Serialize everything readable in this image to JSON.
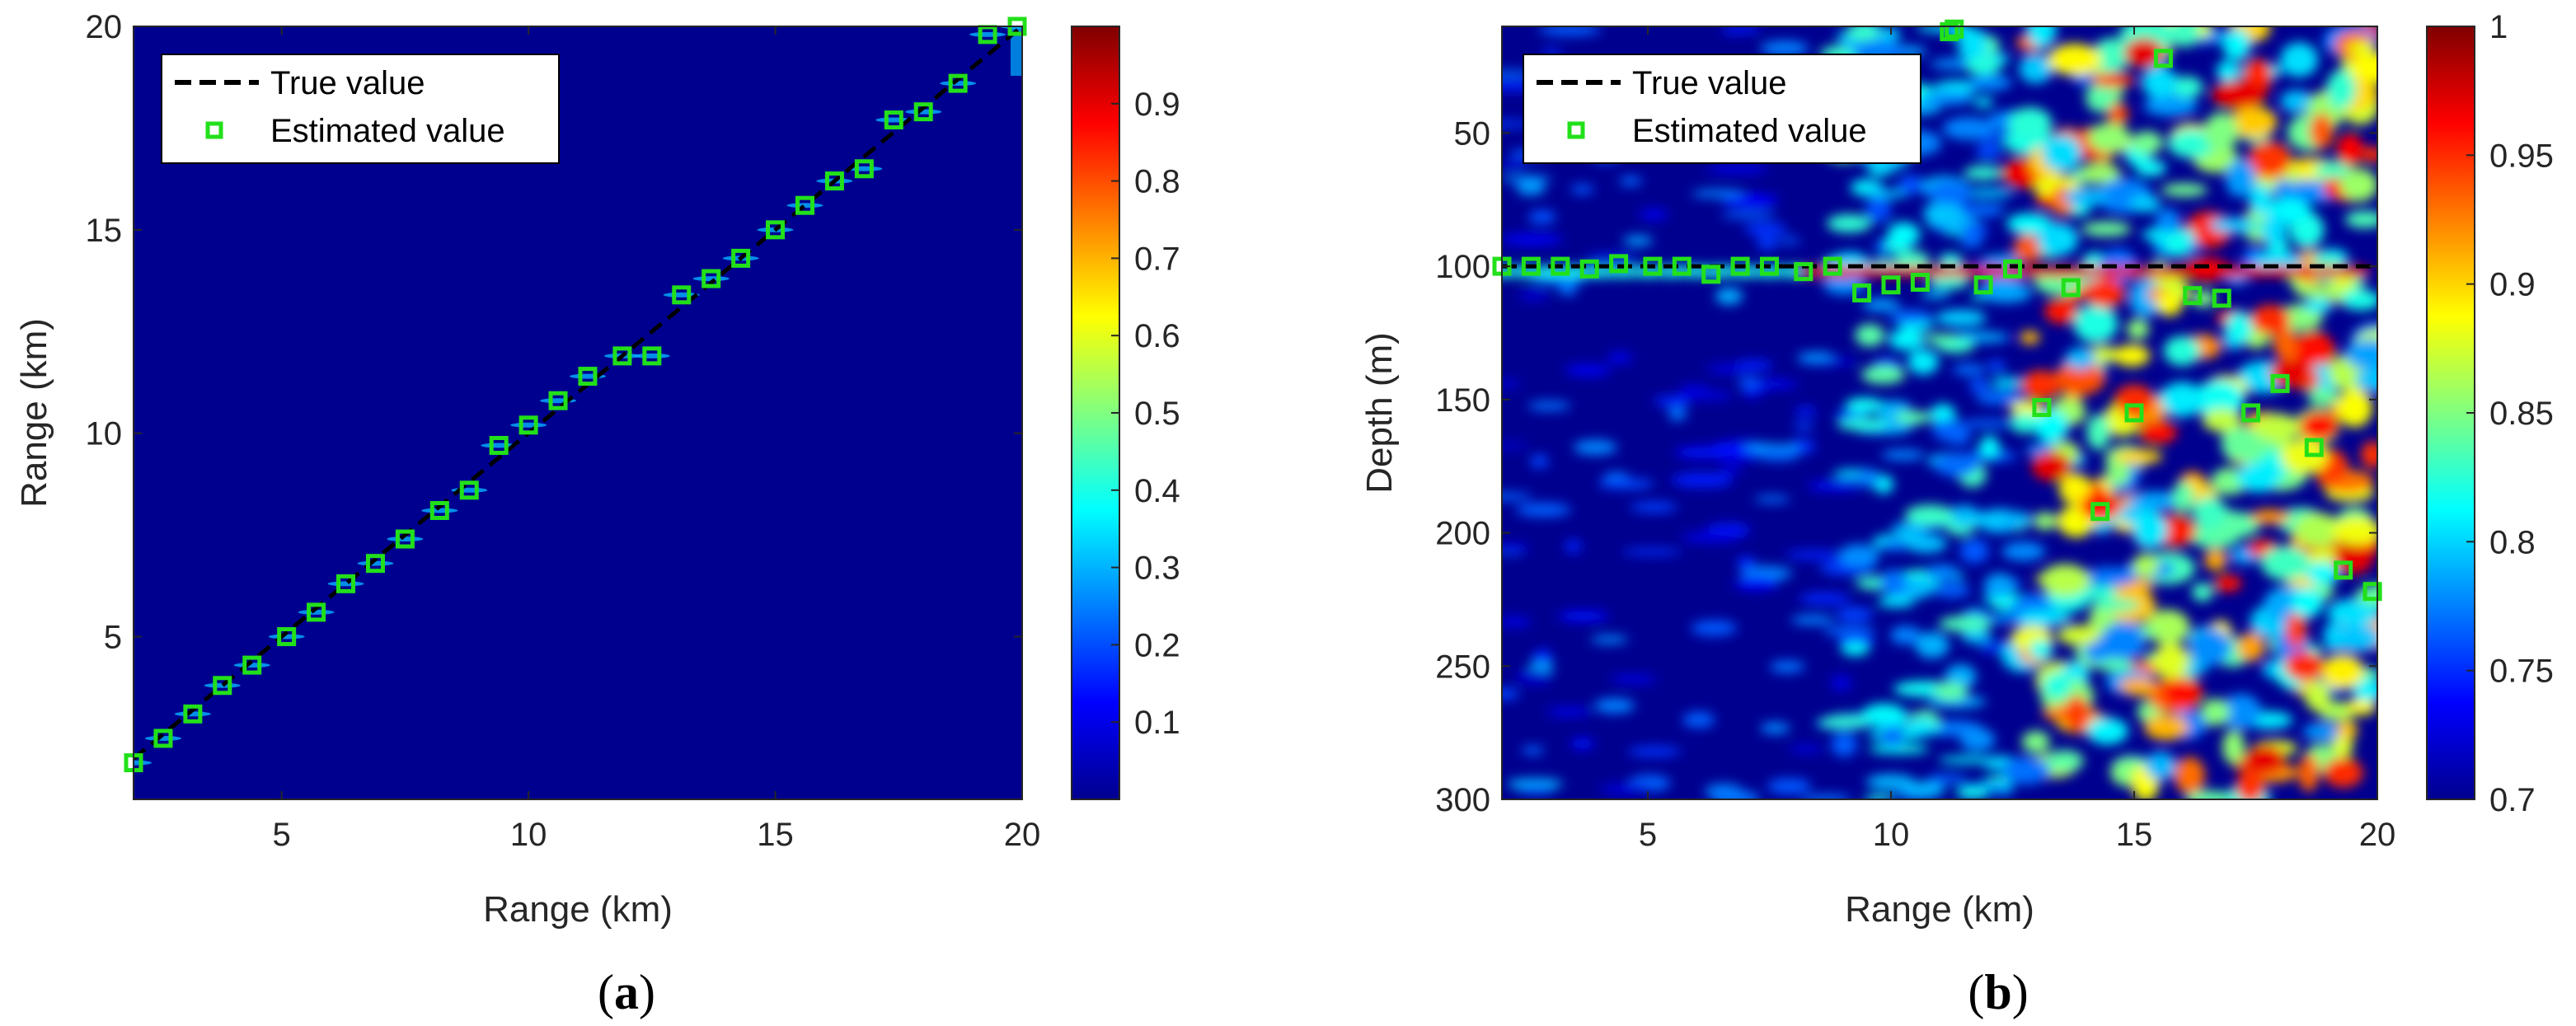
{
  "colormap": [
    "#00008f",
    "#0000ff",
    "#0080ff",
    "#00ffff",
    "#80ff80",
    "#ffff00",
    "#ff8000",
    "#ff0000",
    "#800000"
  ],
  "marker_color": "#22e01a",
  "true_line_color": "#000000",
  "chart_data": [
    {
      "type": "heatmap",
      "caption": "a",
      "xlabel": "Range (km)",
      "ylabel": "Range (km)",
      "xlim": [
        2,
        20
      ],
      "ylim": [
        1,
        20
      ],
      "y_reversed": false,
      "xticks": [
        5,
        10,
        15,
        20
      ],
      "yticks": [
        5,
        10,
        15,
        20
      ],
      "colorbar_ticks": [
        "0.1",
        "0.2",
        "0.3",
        "0.4",
        "0.5",
        "0.6",
        "0.7",
        "0.8",
        "0.9"
      ],
      "colorbar_range": [
        0,
        1
      ],
      "legend": [
        "True value",
        "Estimated value"
      ],
      "true_value": {
        "x": [
          2,
          20
        ],
        "y": [
          2,
          20
        ]
      },
      "estimated": {
        "x": [
          2.0,
          2.6,
          3.2,
          3.8,
          4.4,
          5.1,
          5.7,
          6.3,
          6.9,
          7.5,
          8.2,
          8.8,
          9.4,
          10.0,
          10.6,
          11.2,
          11.9,
          12.5,
          13.1,
          13.7,
          14.3,
          15.0,
          15.6,
          16.2,
          16.8,
          17.4,
          18.0,
          18.7,
          19.3,
          19.9
        ],
        "y": [
          1.9,
          2.5,
          3.1,
          3.8,
          4.3,
          5.0,
          5.6,
          6.3,
          6.8,
          7.4,
          8.1,
          8.6,
          9.7,
          10.2,
          10.8,
          11.4,
          11.9,
          11.9,
          13.4,
          13.8,
          14.3,
          15.0,
          15.6,
          16.2,
          16.5,
          17.7,
          17.9,
          18.6,
          19.8,
          20.0
        ]
      }
    },
    {
      "type": "heatmap",
      "caption": "b",
      "xlabel": "Range (km)",
      "ylabel": "Depth (m)",
      "xlim": [
        2,
        20
      ],
      "ylim": [
        10,
        300
      ],
      "y_reversed": true,
      "xticks": [
        5,
        10,
        15,
        20
      ],
      "yticks": [
        50,
        100,
        150,
        200,
        250,
        300
      ],
      "colorbar_ticks": [
        "0.7",
        "0.75",
        "0.8",
        "0.85",
        "0.9",
        "0.95",
        "1"
      ],
      "colorbar_range": [
        0.7,
        1
      ],
      "legend": [
        "True value",
        "Estimated value"
      ],
      "true_value": {
        "x": [
          2,
          20
        ],
        "y": [
          100,
          100
        ]
      },
      "estimated": {
        "x": [
          2.0,
          2.6,
          3.2,
          3.8,
          4.4,
          5.1,
          5.7,
          6.3,
          6.9,
          7.5,
          8.2,
          8.8,
          9.4,
          10.0,
          10.6,
          11.2,
          11.9,
          12.5,
          13.1,
          13.7,
          14.3,
          15.0,
          15.6,
          16.2,
          16.8,
          17.4,
          18.0,
          18.7,
          19.3,
          19.9,
          11.3
        ],
        "y": [
          100,
          100,
          100,
          101,
          99,
          100,
          100,
          103,
          100,
          100,
          102,
          100,
          110,
          107,
          106,
          12,
          107,
          101,
          153,
          108,
          192,
          155,
          22,
          111,
          112,
          155,
          144,
          168,
          214,
          222,
          11
        ]
      }
    }
  ]
}
